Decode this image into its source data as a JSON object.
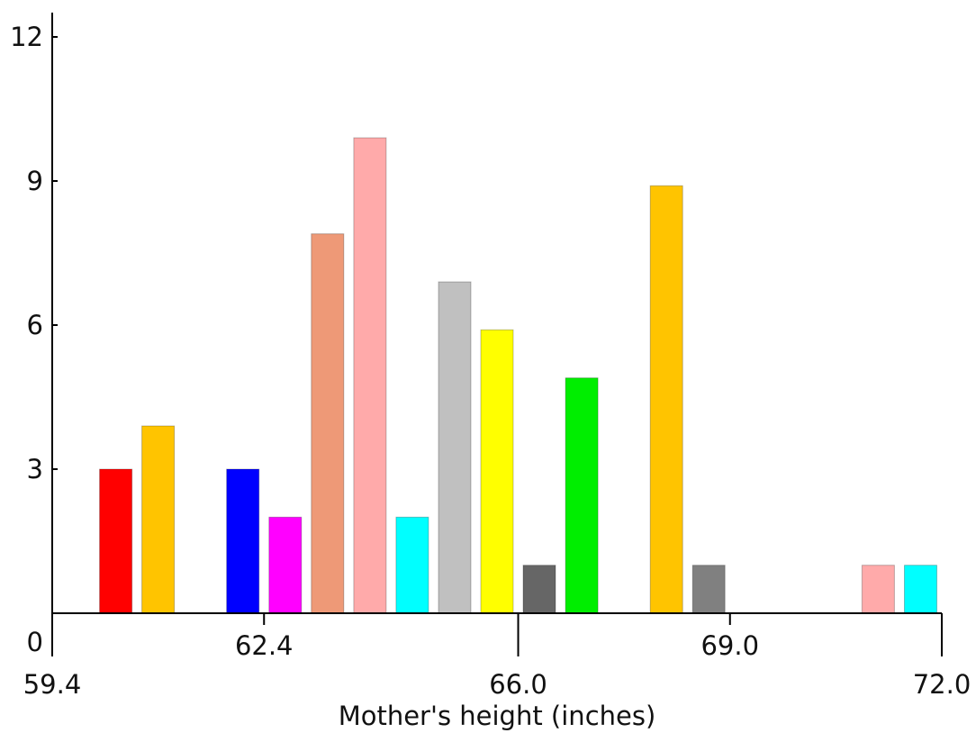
{
  "chart_data": {
    "type": "bar",
    "xlabel": "Mother's height (inches)",
    "ylabel": "",
    "xlim": [
      59.4,
      72.0
    ],
    "ylim": [
      0,
      12
    ],
    "y_ticks": [
      {
        "value": 0,
        "label": "0"
      },
      {
        "value": 3,
        "label": "3"
      },
      {
        "value": 6,
        "label": "6"
      },
      {
        "value": 9,
        "label": "9"
      },
      {
        "value": 12,
        "label": "12"
      }
    ],
    "x_ticks": [
      {
        "value": 59.4,
        "label": "59.4",
        "level": "low"
      },
      {
        "value": 62.4,
        "label": "62.4",
        "level": "high"
      },
      {
        "value": 66.0,
        "label": "66.0",
        "level": "low"
      },
      {
        "value": 69.0,
        "label": "69.0",
        "level": "high"
      },
      {
        "value": 72.0,
        "label": "72.0",
        "level": "low"
      }
    ],
    "grid": false,
    "legend": "none",
    "bars": [
      {
        "x": 60.3,
        "value": 3.0,
        "color": "#ff0000"
      },
      {
        "x": 60.9,
        "value": 3.9,
        "color": "#ffc400"
      },
      {
        "x": 62.1,
        "value": 3.0,
        "color": "#0000ff"
      },
      {
        "x": 62.7,
        "value": 2.0,
        "color": "#ff00ff"
      },
      {
        "x": 63.3,
        "value": 7.9,
        "color": "#ee9977"
      },
      {
        "x": 63.9,
        "value": 9.9,
        "color": "#ffaaaa"
      },
      {
        "x": 64.5,
        "value": 2.0,
        "color": "#00ffff"
      },
      {
        "x": 65.1,
        "value": 6.9,
        "color": "#c0c0c0"
      },
      {
        "x": 65.7,
        "value": 5.9,
        "color": "#ffff00"
      },
      {
        "x": 66.3,
        "value": 1.0,
        "color": "#666666"
      },
      {
        "x": 66.9,
        "value": 4.9,
        "color": "#00ee00"
      },
      {
        "x": 68.1,
        "value": 8.9,
        "color": "#ffc400"
      },
      {
        "x": 68.7,
        "value": 1.0,
        "color": "#808080"
      },
      {
        "x": 71.1,
        "value": 1.0,
        "color": "#ffaaaa"
      },
      {
        "x": 71.7,
        "value": 1.0,
        "color": "#00ffff"
      }
    ]
  }
}
